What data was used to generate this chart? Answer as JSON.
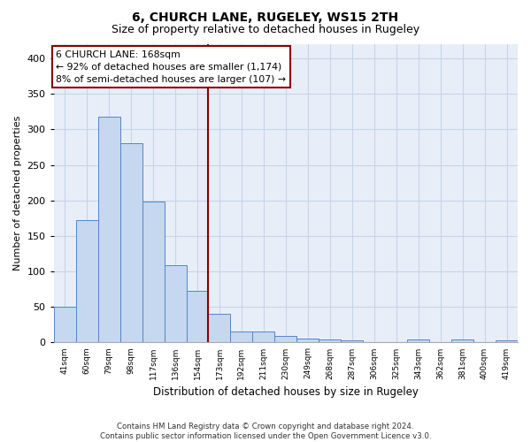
{
  "title": "6, CHURCH LANE, RUGELEY, WS15 2TH",
  "subtitle": "Size of property relative to detached houses in Rugeley",
  "xlabel": "Distribution of detached houses by size in Rugeley",
  "ylabel": "Number of detached properties",
  "footer_line1": "Contains HM Land Registry data © Crown copyright and database right 2024.",
  "footer_line2": "Contains public sector information licensed under the Open Government Licence v3.0.",
  "categories": [
    "41sqm",
    "60sqm",
    "79sqm",
    "98sqm",
    "117sqm",
    "136sqm",
    "154sqm",
    "173sqm",
    "192sqm",
    "211sqm",
    "230sqm",
    "249sqm",
    "268sqm",
    "287sqm",
    "306sqm",
    "325sqm",
    "343sqm",
    "362sqm",
    "381sqm",
    "400sqm",
    "419sqm"
  ],
  "bar_values": [
    50,
    172,
    318,
    280,
    199,
    109,
    73,
    40,
    15,
    15,
    9,
    6,
    4,
    3,
    0,
    0,
    4,
    0,
    4,
    0,
    3
  ],
  "bar_color": "#c5d8f0",
  "bar_edge_color": "#5585c5",
  "annotation_line1": "6 CHURCH LANE: 168sqm",
  "annotation_line2": "← 92% of detached houses are smaller (1,174)",
  "annotation_line3": "8% of semi-detached houses are larger (107) →",
  "vline_index": 6.5,
  "vline_color": "#8b0000",
  "annotation_box_edge_color": "#8b0000",
  "ylim": [
    0,
    420
  ],
  "yticks": [
    0,
    50,
    100,
    150,
    200,
    250,
    300,
    350,
    400
  ],
  "grid_color": "#c8d4e8",
  "background_color": "#e8eef8",
  "title_fontsize": 10,
  "subtitle_fontsize": 9
}
